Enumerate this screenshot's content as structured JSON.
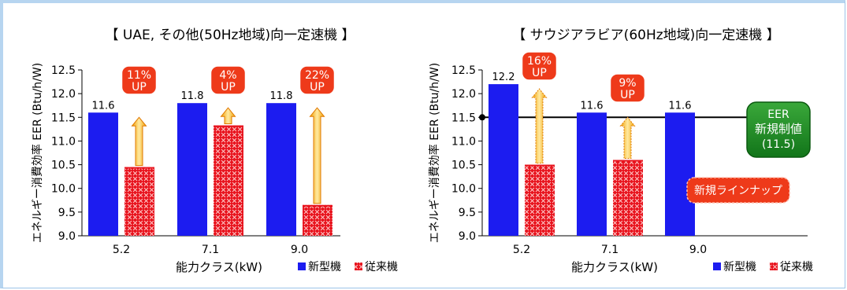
{
  "chart_data": [
    {
      "type": "bar",
      "title": "【 UAE, その他(50Hz地域)向一定速機 】",
      "xlabel": "能力クラス(kW)",
      "ylabel": "エネルギー消費効率 EER (Btu/h/W)",
      "ylim": [
        9.0,
        12.5
      ],
      "yticks": [
        "12.5",
        "12.0",
        "11.5",
        "11.0",
        "10.5",
        "10.0",
        "9.5",
        "9.0"
      ],
      "categories": [
        "5.2",
        "7.1",
        "9.0"
      ],
      "series": [
        {
          "name": "新型機",
          "color": "#1c1cf0",
          "values": [
            11.6,
            11.8,
            11.8
          ],
          "labels": [
            "11.6",
            "11.8",
            "11.8"
          ]
        },
        {
          "name": "従来機",
          "color": "#e8141e",
          "values": [
            10.45,
            11.33,
            9.65
          ]
        }
      ],
      "improvements": [
        {
          "line1": "11%",
          "line2": "UP"
        },
        {
          "line1": "4%",
          "line2": "UP"
        },
        {
          "line1": "22%",
          "line2": "UP"
        }
      ],
      "legend": "bottom-right"
    },
    {
      "type": "bar",
      "title": "【 サウジアラビア(60Hz地域)向一定速機 】",
      "xlabel": "能力クラス(kW)",
      "ylabel": "エネルギー消費効率 EER (Btu/h/W)",
      "ylim": [
        9.0,
        12.5
      ],
      "yticks": [
        "12.5",
        "12.0",
        "11.5",
        "11.0",
        "10.5",
        "10.0",
        "9.5",
        "9.0"
      ],
      "categories": [
        "5.2",
        "7.1",
        "9.0"
      ],
      "series": [
        {
          "name": "新型機",
          "color": "#1c1cf0",
          "values": [
            12.2,
            11.6,
            11.6
          ],
          "labels": [
            "12.2",
            "11.6",
            "11.6"
          ]
        },
        {
          "name": "従来機",
          "color": "#e8141e",
          "values": [
            10.5,
            10.6,
            null
          ]
        }
      ],
      "improvements": [
        {
          "line1": "16%",
          "line2": "UP"
        },
        {
          "line1": "9%",
          "line2": "UP"
        },
        null
      ],
      "reference_line": {
        "value": 11.5,
        "line1": "EER",
        "line2": "新規制値",
        "line3": "(11.5)",
        "color": "#1a8a1a"
      },
      "new_lineup": {
        "text": "新規ラインナップ"
      },
      "legend": "bottom-right"
    }
  ]
}
